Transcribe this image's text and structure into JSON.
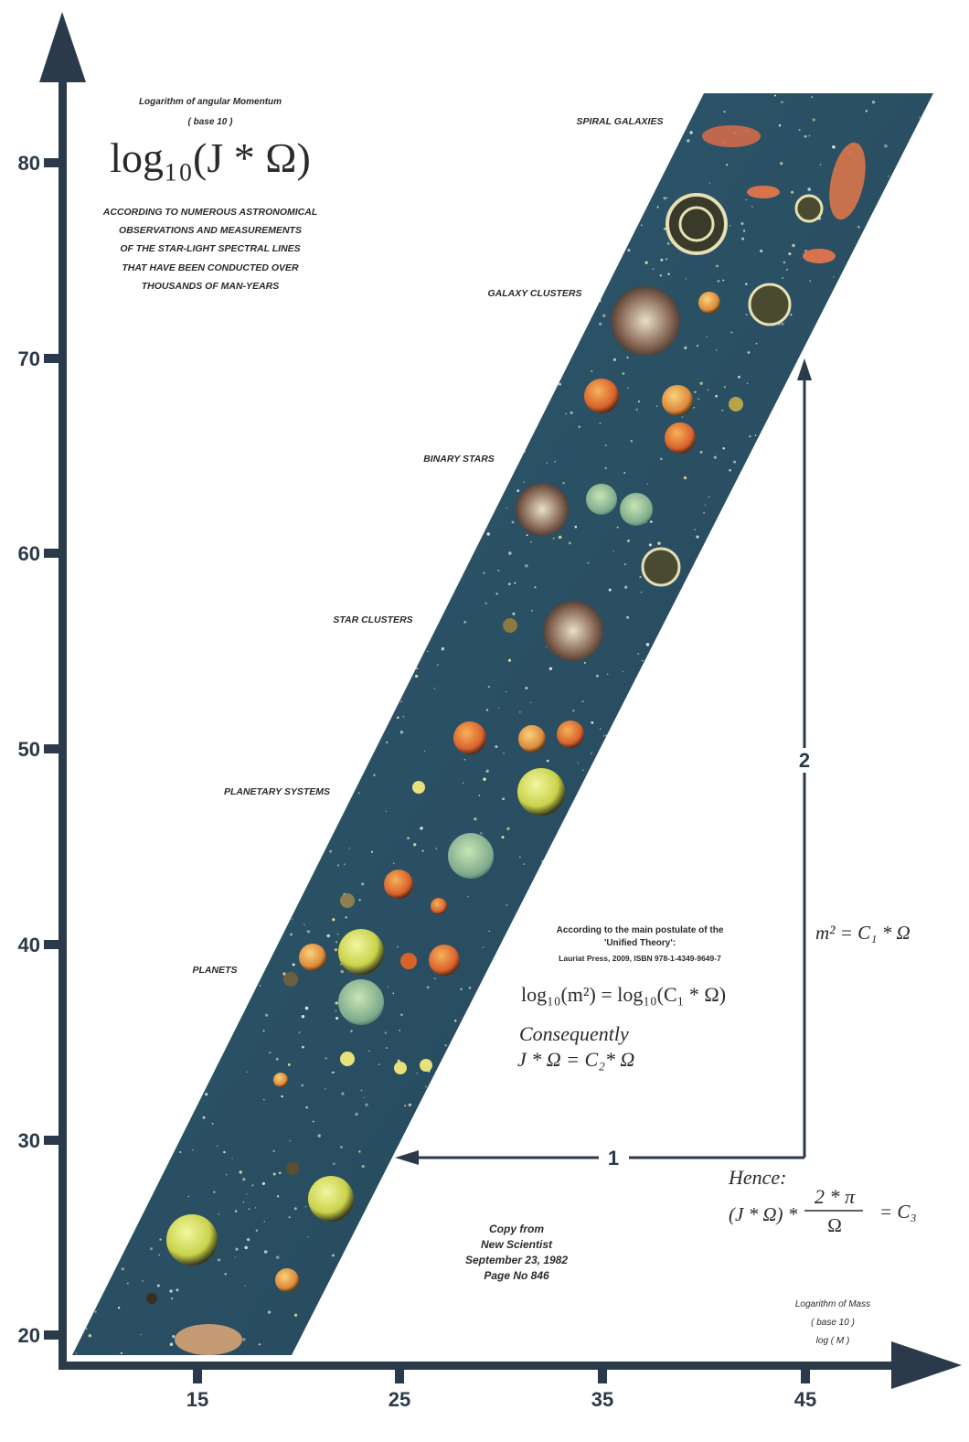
{
  "y_axis": {
    "title_line1": "Logarithm of angular Momentum",
    "title_line2": "( base 10 )",
    "formula": "log₁₀(J * Ω)",
    "ticks": [
      "80",
      "70",
      "60",
      "50",
      "40",
      "30",
      "20"
    ]
  },
  "x_axis": {
    "title_line1": "Logarithm of Mass",
    "title_line2": "( base 10 )",
    "title_line3": "log ( M )",
    "ticks": [
      "15",
      "25",
      "35",
      "45"
    ]
  },
  "observations": [
    "ACCORDING TO NUMEROUS ASTRONOMICAL",
    "OBSERVATIONS AND MEASUREMENTS",
    "OF THE STAR-LIGHT SPECTRAL LINES",
    "THAT HAVE BEEN CONDUCTED OVER",
    "THOUSANDS OF MAN-YEARS"
  ],
  "categories": {
    "spiral_galaxies": "SPIRAL GALAXIES",
    "galaxy_clusters": "GALAXY CLUSTERS",
    "binary_stars": "BINARY STARS",
    "star_clusters": "STAR CLUSTERS",
    "planetary_systems": "PLANETARY SYSTEMS",
    "planets": "PLANETS"
  },
  "postulate": {
    "line1": "According to the main postulate of the",
    "line2": "'Unified Theory':",
    "line3": "Lauriat Press, 2009, ISBN 978-1-4349-9649-7",
    "equation": "log₁₀(m²) = log₁₀(C₁ * Ω)",
    "consequently": "Consequently",
    "result": "J * Ω = C₂* Ω"
  },
  "relation": {
    "m_squared": "m² = C₁ * Ω",
    "step1": "1",
    "step2": "2",
    "hence": "Hence:",
    "hence_left": "(J * Ω) *",
    "numerator": "2 * π",
    "denominator": "Ω",
    "hence_right": "= C₃"
  },
  "source": {
    "line1": "Copy from",
    "line2": "New Scientist",
    "line3": "September 23, 1982",
    "line4": "Page No 846"
  },
  "colors": {
    "axis": "#2b3a4a",
    "band": "#2d5468",
    "band_dark": "#1f4355"
  }
}
